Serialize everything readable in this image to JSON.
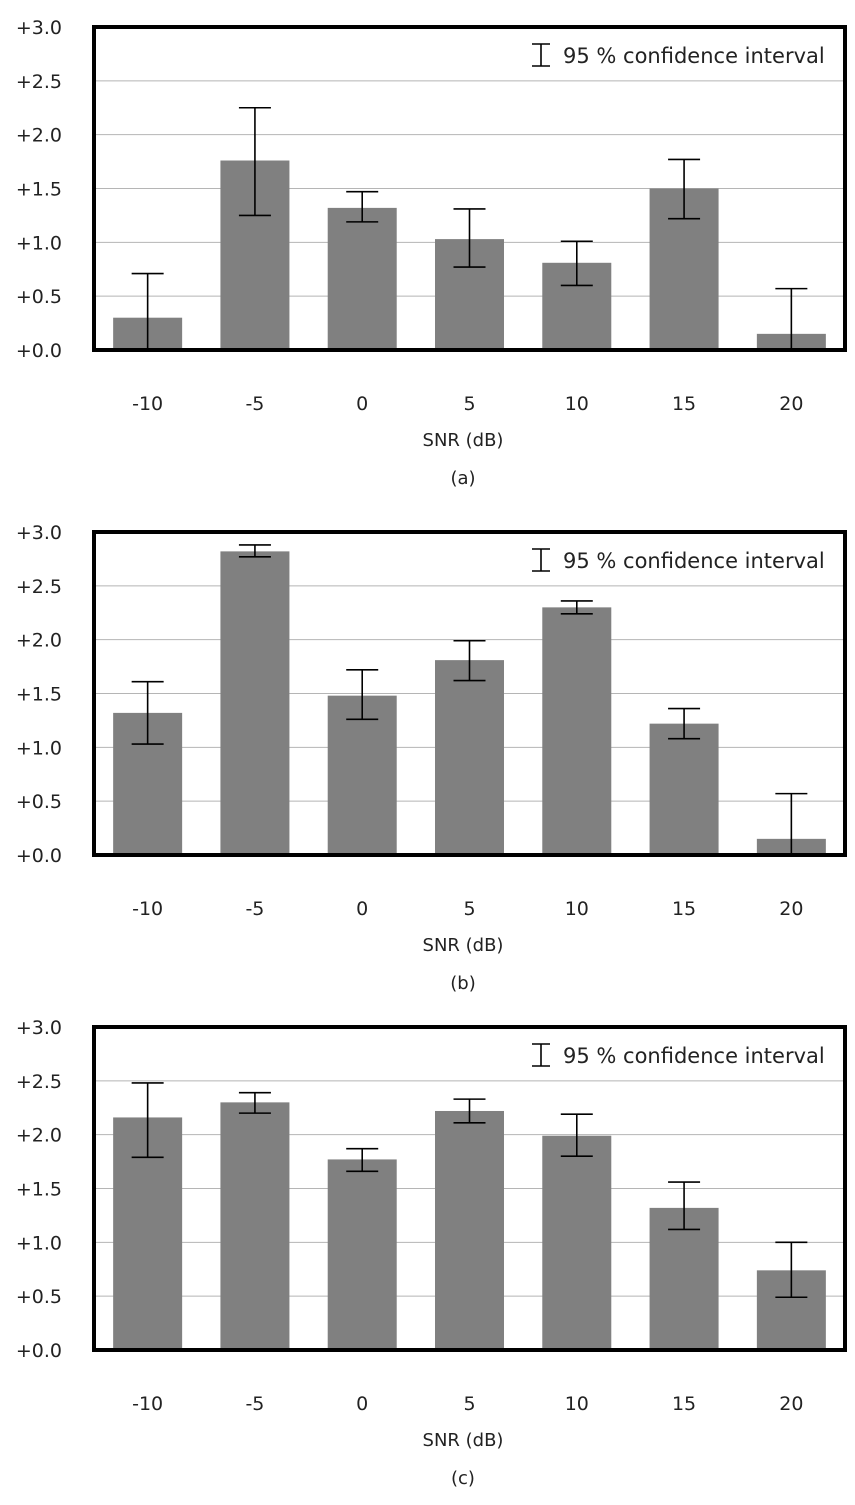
{
  "chart_data": [
    {
      "type": "bar",
      "subtitle": "(a)",
      "xlabel": "SNR (dB)",
      "ylabel": "",
      "ylim": [
        0,
        3
      ],
      "yticks": [
        "+0.0",
        "+0.5",
        "+1.0",
        "+1.5",
        "+2.0",
        "+2.5",
        "+3.0"
      ],
      "categories": [
        "-10",
        "-5",
        "0",
        "5",
        "10",
        "15",
        "20"
      ],
      "values": [
        0.3,
        1.76,
        1.32,
        1.03,
        0.81,
        1.5,
        0.15
      ],
      "ci_low": [
        0.0,
        1.25,
        1.19,
        0.77,
        0.6,
        1.22,
        0.0
      ],
      "ci_high": [
        0.71,
        2.25,
        1.47,
        1.31,
        1.01,
        1.77,
        0.57
      ],
      "legend": "95 % confidence interval",
      "legend_position": "top-right",
      "grid": true,
      "bar_color": "#808080"
    },
    {
      "type": "bar",
      "subtitle": "(b)",
      "xlabel": "SNR (dB)",
      "ylabel": "",
      "ylim": [
        0,
        3
      ],
      "yticks": [
        "+0.0",
        "+0.5",
        "+1.0",
        "+1.5",
        "+2.0",
        "+2.5",
        "+3.0"
      ],
      "categories": [
        "-10",
        "-5",
        "0",
        "5",
        "10",
        "15",
        "20"
      ],
      "values": [
        1.32,
        2.82,
        1.48,
        1.81,
        2.3,
        1.22,
        0.15
      ],
      "ci_low": [
        1.03,
        2.77,
        1.26,
        1.62,
        2.24,
        1.08,
        0.0
      ],
      "ci_high": [
        1.61,
        2.88,
        1.72,
        1.99,
        2.36,
        1.36,
        0.57
      ],
      "legend": "95 % confidence interval",
      "legend_position": "top-right",
      "grid": true,
      "bar_color": "#808080"
    },
    {
      "type": "bar",
      "subtitle": "(c)",
      "xlabel": "SNR (dB)",
      "ylabel": "",
      "ylim": [
        0,
        3
      ],
      "yticks": [
        "+0.0",
        "+0.5",
        "+1.0",
        "+1.5",
        "+2.0",
        "+2.5",
        "+3.0"
      ],
      "categories": [
        "-10",
        "-5",
        "0",
        "5",
        "10",
        "15",
        "20"
      ],
      "values": [
        2.16,
        2.3,
        1.77,
        2.22,
        1.99,
        1.32,
        0.74
      ],
      "ci_low": [
        1.79,
        2.2,
        1.66,
        2.11,
        1.8,
        1.12,
        0.49
      ],
      "ci_high": [
        2.48,
        2.39,
        1.87,
        2.33,
        2.19,
        1.56,
        1.0
      ],
      "legend": "95 % confidence interval",
      "legend_position": "top-right",
      "grid": true,
      "bar_color": "#808080"
    }
  ]
}
